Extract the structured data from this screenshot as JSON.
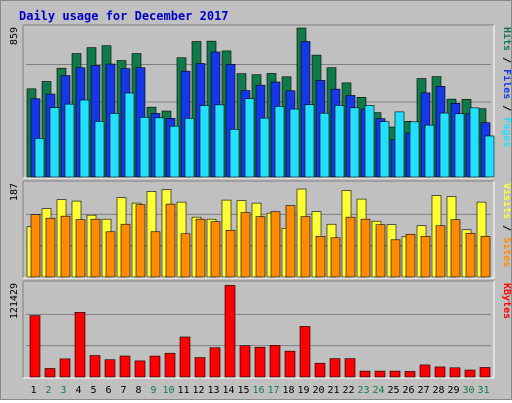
{
  "title": "Daily usage for December 2017",
  "colors": {
    "background": "#c0c0c0",
    "title": "#0000cc",
    "hits": "#117a4a",
    "files": "#1438e6",
    "pages": "#22e0ff",
    "visits": "#ffff33",
    "sites": "#ff8c00",
    "kbytes": "#ff0000",
    "weekend_label": "#117a4a",
    "weekday_label": "#000000"
  },
  "chart_data": [
    {
      "type": "bar",
      "categories": [
        "1",
        "2",
        "3",
        "4",
        "5",
        "6",
        "7",
        "8",
        "9",
        "10",
        "11",
        "12",
        "13",
        "14",
        "15",
        "16",
        "17",
        "18",
        "19",
        "20",
        "21",
        "22",
        "23",
        "24",
        "25",
        "26",
        "27",
        "28",
        "29",
        "30",
        "31"
      ],
      "weekend_days": [
        "2",
        "3",
        "9",
        "10",
        "16",
        "17",
        "23",
        "24",
        "30",
        "31"
      ],
      "ylim": [
        0,
        859
      ],
      "y_max_label": "859",
      "legend": [
        "Pages",
        "Files",
        "Hits"
      ],
      "series": [
        {
          "name": "Hits",
          "values": [
            505,
            547,
            623,
            707,
            741,
            752,
            667,
            707,
            400,
            378,
            683,
            776,
            778,
            722,
            592,
            586,
            593,
            574,
            853,
            698,
            626,
            539,
            456,
            369,
            286,
            319,
            564,
            575,
            446,
            445,
            391
          ]
        },
        {
          "name": "Files",
          "values": [
            448,
            475,
            581,
            626,
            639,
            647,
            621,
            626,
            364,
            336,
            606,
            650,
            716,
            645,
            495,
            526,
            544,
            494,
            776,
            553,
            503,
            467,
            389,
            334,
            214,
            253,
            482,
            519,
            422,
            362,
            311
          ]
        },
        {
          "name": "Pages",
          "values": [
            221,
            397,
            417,
            441,
            318,
            364,
            481,
            342,
            339,
            291,
            336,
            409,
            413,
            273,
            449,
            337,
            404,
            389,
            414,
            365,
            410,
            396,
            410,
            317,
            373,
            316,
            297,
            366,
            362,
            396,
            235
          ]
        }
      ]
    },
    {
      "type": "bar",
      "categories": [
        "1",
        "2",
        "3",
        "4",
        "5",
        "6",
        "7",
        "8",
        "9",
        "10",
        "11",
        "12",
        "13",
        "14",
        "15",
        "16",
        "17",
        "18",
        "19",
        "20",
        "21",
        "22",
        "23",
        "24",
        "25",
        "26",
        "27",
        "28",
        "29",
        "30",
        "31"
      ],
      "ylim": [
        0,
        187
      ],
      "y_max_label": "187",
      "legend": [
        "Sites",
        "Visits"
      ],
      "series": [
        {
          "name": "Visits",
          "values": [
            100,
            136,
            154,
            151,
            123,
            115,
            158,
            147,
            170,
            174,
            149,
            119,
            115,
            153,
            152,
            147,
            127,
            97,
            175,
            130,
            105,
            172,
            155,
            111,
            104,
            80,
            102,
            162,
            160,
            94,
            149
          ]
        },
        {
          "name": "Sites",
          "values": [
            124,
            117,
            121,
            114,
            115,
            90,
            105,
            144,
            90,
            145,
            86,
            115,
            110,
            93,
            128,
            120,
            130,
            142,
            120,
            81,
            78,
            119,
            115,
            104,
            74,
            85,
            81,
            102,
            114,
            87,
            81
          ]
        }
      ]
    },
    {
      "type": "bar",
      "categories": [
        "1",
        "2",
        "3",
        "4",
        "5",
        "6",
        "7",
        "8",
        "9",
        "10",
        "11",
        "12",
        "13",
        "14",
        "15",
        "16",
        "17",
        "18",
        "19",
        "20",
        "21",
        "22",
        "23",
        "24",
        "25",
        "26",
        "27",
        "28",
        "29",
        "30",
        "31"
      ],
      "ylim": [
        0,
        121429
      ],
      "y_max_label": "121429",
      "legend": [
        "KBytes"
      ],
      "series": [
        {
          "name": "KBytes",
          "values": [
            79300,
            11000,
            23400,
            83600,
            27700,
            22400,
            27100,
            20800,
            27000,
            30700,
            51700,
            25100,
            37800,
            118300,
            40400,
            38400,
            40900,
            33400,
            65300,
            17800,
            23700,
            23700,
            7600,
            7600,
            7600,
            7200,
            15600,
            13000,
            11900,
            9000,
            12300
          ]
        }
      ]
    }
  ]
}
